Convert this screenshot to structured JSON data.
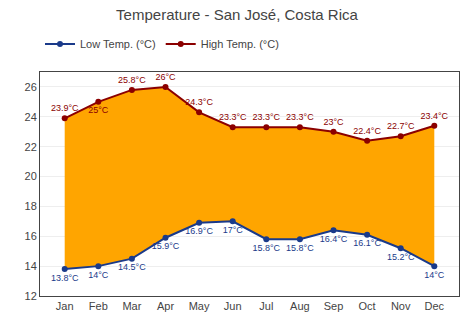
{
  "chart_data": {
    "type": "line",
    "title": "Temperature - San José, Costa Rica",
    "categories": [
      "Jan",
      "Feb",
      "Mar",
      "Apr",
      "May",
      "Jun",
      "Jul",
      "Aug",
      "Sep",
      "Oct",
      "Nov",
      "Dec"
    ],
    "series": [
      {
        "name": "High Temp. (°C)",
        "color": "#8B0000",
        "marker": "circle",
        "values": [
          23.9,
          25.0,
          25.8,
          26.0,
          24.3,
          23.3,
          23.3,
          23.3,
          23.0,
          22.4,
          22.7,
          23.4
        ],
        "value_labels": [
          "23.9°C",
          "25°C",
          "25.8°C",
          "26°C",
          "24.3°C",
          "23.3°C",
          "23.3°C",
          "23.3°C",
          "23°C",
          "22.4°C",
          "22.7°C",
          "23.4°C"
        ]
      },
      {
        "name": "Low Temp. (°C)",
        "color": "#1a3a8a",
        "marker": "circle",
        "values": [
          13.8,
          14.0,
          14.5,
          15.9,
          16.9,
          17.0,
          15.8,
          15.8,
          16.4,
          16.1,
          15.2,
          14.0
        ],
        "value_labels": [
          "13.8°C",
          "14°C",
          "14.5°C",
          "15.9°C",
          "16.9°C",
          "17°C",
          "15.8°C",
          "15.8°C",
          "16.4°C",
          "16.1°C",
          "15.2°C",
          "14°C"
        ]
      }
    ],
    "color": "#FFA500",
    "data_labels": true,
    "ylim": [
      12,
      27
    ],
    "yticks": [
      12,
      14,
      16,
      18,
      20,
      22,
      24,
      26
    ],
    "grid": true,
    "legend": "top"
  }
}
